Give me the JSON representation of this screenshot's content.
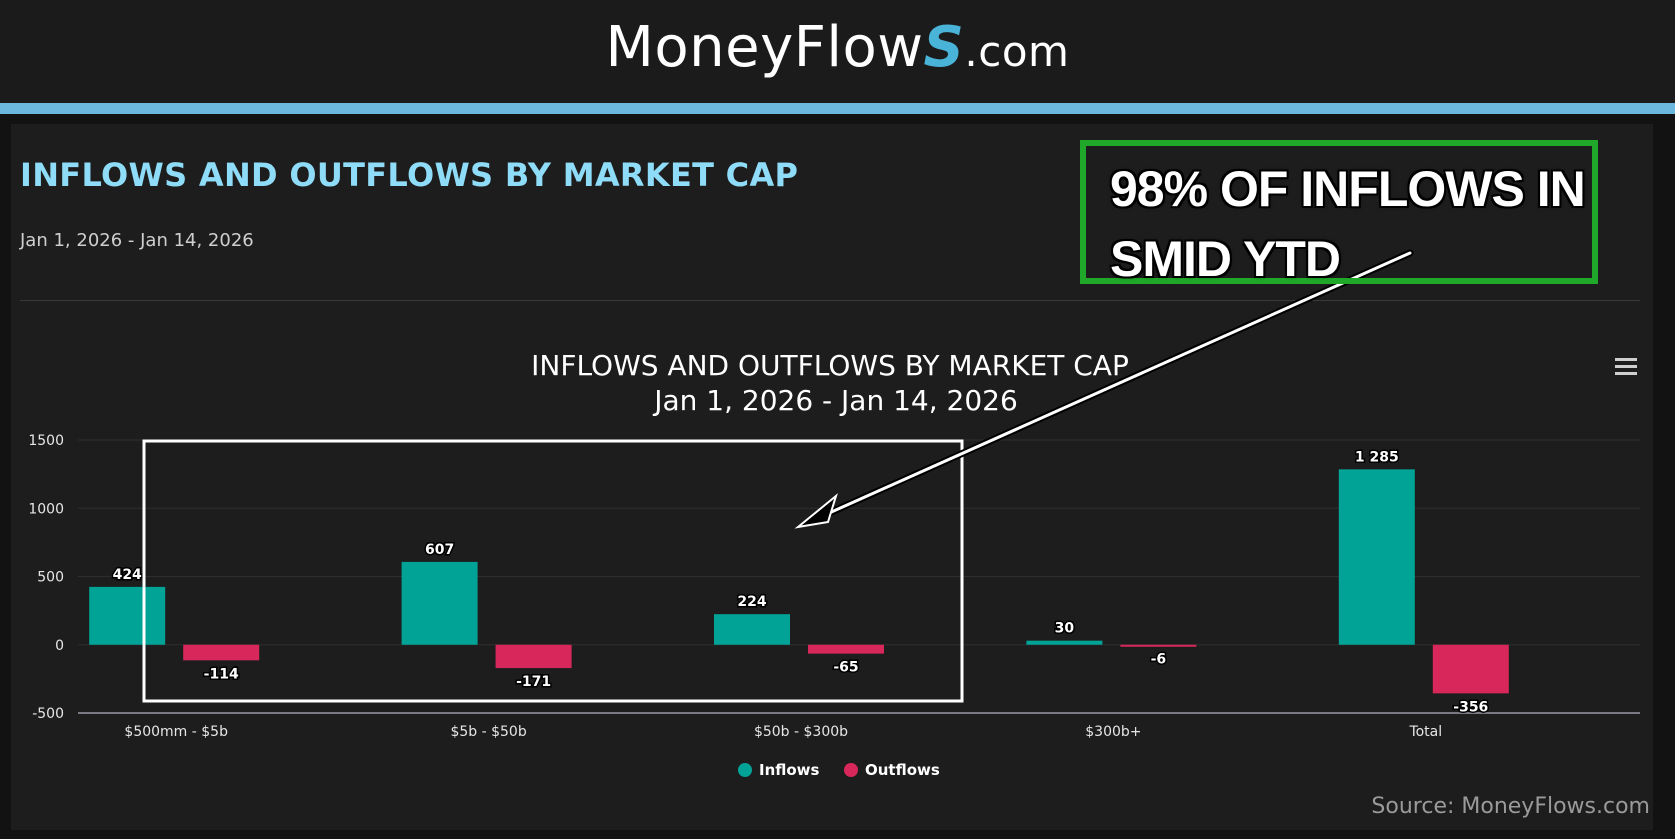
{
  "header": {
    "brand_main": "MoneyFlow",
    "brand_mark": "S",
    "brand_domain": ".com"
  },
  "panel": {
    "title": "INFLOWS AND OUTFLOWS BY MARKET CAP",
    "date_range": "Jan 1, 2026 - Jan 14, 2026"
  },
  "callout": {
    "line1": "98% OF INFLOWS IN",
    "line2": "SMID YTD"
  },
  "source": "Source: MoneyFlows.com",
  "colors": {
    "inflows": "#00a396",
    "outflows": "#d8285b",
    "callout_border": "#1fa82a",
    "accent_rule": "#6bb7de"
  },
  "chart_data": {
    "type": "bar",
    "title": "INFLOWS AND OUTFLOWS BY MARKET CAP",
    "subtitle": "Jan 1, 2026 - Jan 14, 2026",
    "categories": [
      "$500mm - $5b",
      "$5b - $50b",
      "$50b - $300b",
      "$300b+",
      "Total"
    ],
    "series": [
      {
        "name": "Inflows",
        "values": [
          424,
          607,
          224,
          30,
          1285
        ]
      },
      {
        "name": "Outflows",
        "values": [
          -114,
          -171,
          -65,
          -6,
          -356
        ]
      }
    ],
    "data_labels": {
      "Inflows": [
        "424",
        "607",
        "224",
        "30",
        "1 285"
      ],
      "Outflows": [
        "-114",
        "-171",
        "-65",
        "-6",
        "-356"
      ]
    },
    "yticks": [
      "1500",
      "1000",
      "500",
      "0",
      "-500"
    ],
    "ytick_values": [
      1500,
      1000,
      500,
      0,
      -500
    ],
    "ylim": [
      -500,
      1500
    ],
    "grid": true,
    "legend_position": "bottom-center",
    "highlight_categories": [
      "$500mm - $5b",
      "$5b - $50b",
      "$50b - $300b"
    ]
  }
}
